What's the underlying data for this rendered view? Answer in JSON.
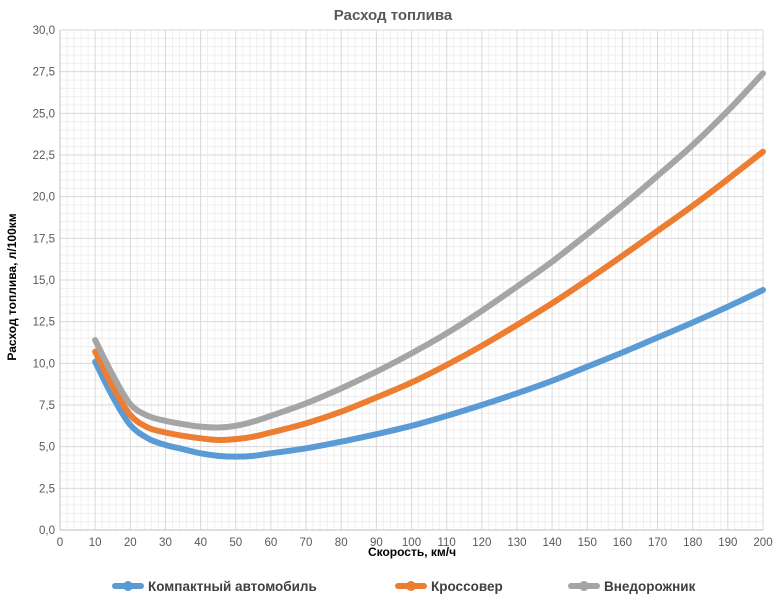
{
  "chart_data": {
    "type": "line",
    "title": "Расход топлива",
    "xlabel": "Скорость, км/ч",
    "ylabel": "Расход топлива, л/100км",
    "xlim": [
      0,
      200
    ],
    "ylim": [
      0,
      30
    ],
    "x_ticks": [
      "0",
      "10",
      "20",
      "30",
      "40",
      "50",
      "60",
      "70",
      "80",
      "90",
      "100",
      "110",
      "120",
      "130",
      "140",
      "150",
      "160",
      "170",
      "180",
      "190",
      "200"
    ],
    "y_ticks": [
      "0,0",
      "2,5",
      "5,0",
      "7,5",
      "10,0",
      "12,5",
      "15,0",
      "17,5",
      "20,0",
      "22,5",
      "25,0",
      "27,5",
      "30,0"
    ],
    "grid": true,
    "legend_position": "bottom",
    "series": [
      {
        "name": "Компактный автомобиль",
        "color": "#5b9bd5",
        "x": [
          10,
          15,
          20,
          25,
          30,
          35,
          40,
          45,
          50,
          55,
          60,
          70,
          80,
          90,
          100,
          110,
          120,
          130,
          140,
          150,
          160,
          170,
          180,
          190,
          200
        ],
        "y": [
          10.1,
          8.0,
          6.3,
          5.5,
          5.1,
          4.85,
          4.6,
          4.45,
          4.4,
          4.45,
          4.6,
          4.9,
          5.3,
          5.75,
          6.25,
          6.85,
          7.5,
          8.2,
          8.95,
          9.8,
          10.65,
          11.55,
          12.45,
          13.4,
          14.4
        ]
      },
      {
        "name": "Кроссовер",
        "color": "#ed7d31",
        "x": [
          10,
          15,
          20,
          25,
          30,
          35,
          40,
          45,
          50,
          55,
          60,
          70,
          80,
          90,
          100,
          110,
          120,
          130,
          140,
          150,
          160,
          170,
          180,
          190,
          200
        ],
        "y": [
          10.7,
          8.6,
          6.9,
          6.15,
          5.85,
          5.65,
          5.5,
          5.4,
          5.45,
          5.6,
          5.85,
          6.4,
          7.1,
          7.95,
          8.85,
          9.9,
          11.05,
          12.3,
          13.6,
          15.0,
          16.45,
          17.95,
          19.45,
          21.05,
          22.7
        ]
      },
      {
        "name": "Внедорожник",
        "color": "#a5a5a5",
        "x": [
          10,
          15,
          20,
          25,
          30,
          35,
          40,
          45,
          50,
          55,
          60,
          70,
          80,
          90,
          100,
          110,
          120,
          130,
          140,
          150,
          160,
          170,
          180,
          190,
          200
        ],
        "y": [
          11.4,
          9.3,
          7.55,
          6.85,
          6.55,
          6.35,
          6.2,
          6.15,
          6.25,
          6.5,
          6.85,
          7.6,
          8.5,
          9.5,
          10.6,
          11.8,
          13.15,
          14.6,
          16.1,
          17.75,
          19.45,
          21.25,
          23.1,
          25.15,
          27.4
        ]
      }
    ]
  }
}
